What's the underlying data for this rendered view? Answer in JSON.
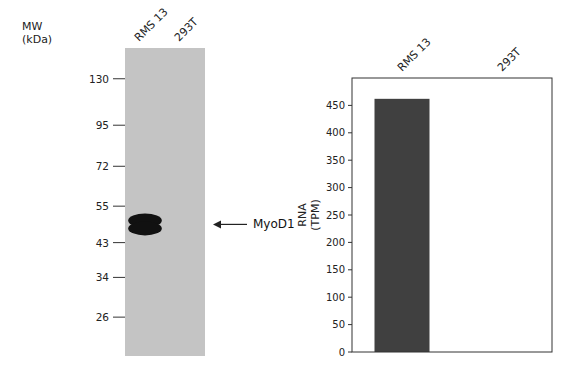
{
  "chart_data": [
    {
      "type": "blot",
      "ylabel": "MW\n(kDa)",
      "categories": [
        "RMS 13",
        "293T"
      ],
      "yticks": [
        130,
        95,
        72,
        55,
        43,
        34,
        26
      ],
      "ylim": [
        20,
        160
      ],
      "log": "y",
      "annotations": [
        "MyoD1"
      ],
      "color": "#111111"
    },
    {
      "type": "bar",
      "categories": [
        "RMS 13",
        "293T"
      ],
      "values": [
        462,
        0
      ],
      "color": "#404040",
      "ylabel": "RNA\n(TPM)",
      "ylim": [
        0,
        500
      ],
      "yticks": [
        0,
        50,
        100,
        150,
        200,
        250,
        300,
        350,
        400,
        450
      ],
      "grid": false
    }
  ]
}
